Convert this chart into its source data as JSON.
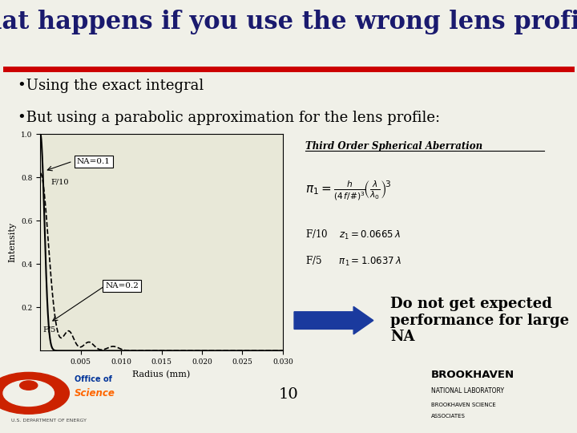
{
  "title": "What happens if you use the wrong lens profile?",
  "title_fontsize": 22,
  "title_color": "#1a1a6e",
  "red_line_color": "#cc0000",
  "bullet1": "•Using the exact integral",
  "bullet2": "•But using a parabolic approximation for the lens profile:",
  "bullet_fontsize": 13,
  "bullet_color": "#000000",
  "plot_title": "Third Order Spherical Aberration",
  "xlabel": "Radius (mm)",
  "ylabel": "Intensity",
  "label_na01": "NA=0.1",
  "label_na02": "NA=0.2",
  "label_f10": "F/10",
  "label_f5": "F/5",
  "annotation_text": "Do not get expected\nperformance for large\nNA",
  "annotation_fontsize": 13,
  "page_number": "10",
  "bg_color": "#f0f0e8",
  "plot_bg": "#e8e8d8",
  "arrow_color": "#1a3a9e",
  "xlim": [
    0,
    0.03
  ],
  "ylim": [
    0,
    1.0
  ]
}
